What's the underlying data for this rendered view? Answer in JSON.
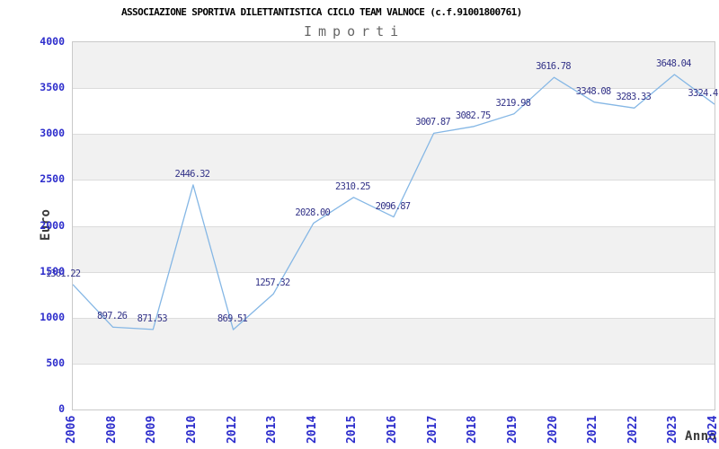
{
  "header": {
    "title": "ASSOCIAZIONE SPORTIVA DILETTANTISTICA CICLO TEAM VALNOCE (c.f.91001800761)",
    "subtitle": "Importi"
  },
  "axes": {
    "y_label": "Euro",
    "x_label": "Anno",
    "y_ticks": [
      "4000",
      "3500",
      "3000",
      "2500",
      "2000",
      "1500",
      "1000",
      "500",
      "0"
    ],
    "x_ticks": [
      "2006",
      "2008",
      "2009",
      "2010",
      "2012",
      "2013",
      "2014",
      "2015",
      "2016",
      "2017",
      "2018",
      "2019",
      "2020",
      "2021",
      "2022",
      "2023",
      "2024"
    ]
  },
  "chart_data": {
    "type": "line",
    "title": "ASSOCIAZIONE SPORTIVA DILETTANTISTICA CICLO TEAM VALNOCE (c.f.91001800761)",
    "subtitle": "Importi",
    "xlabel": "Anno",
    "ylabel": "Euro",
    "categories": [
      "2006",
      "2008",
      "2009",
      "2010",
      "2012",
      "2013",
      "2014",
      "2015",
      "2016",
      "2017",
      "2018",
      "2019",
      "2020",
      "2021",
      "2022",
      "2023",
      "2024"
    ],
    "values": [
      1361.22,
      897.26,
      871.53,
      2446.32,
      869.51,
      1257.32,
      2028.0,
      2310.25,
      2096.87,
      3007.87,
      3082.75,
      3219.98,
      3616.78,
      3348.08,
      3283.33,
      3648.04,
      3324.4
    ],
    "point_labels": [
      "1361.22",
      "897.26",
      "871.53",
      "2446.32",
      "869.51",
      "1257.32",
      "2028.00",
      "2310.25",
      "2096.87",
      "3007.87",
      "3082.75",
      "3219.98",
      "3616.78",
      "3348.08",
      "3283.33",
      "3648.04",
      "3324.4"
    ],
    "ylim": [
      0,
      4000
    ],
    "y_tick_step": 500,
    "grid": "horizontal",
    "band_fill": "alternating",
    "legend": "none",
    "colors": {
      "line": "#85b7e5",
      "point_label": "#333388",
      "tick_label": "#2d2dcc",
      "axis_title": "#3a3a3a",
      "band_gray": "#f1f1f1",
      "gridline": "#dcdcdc",
      "plot_border": "#c9c9c9",
      "title": "#000000",
      "subtitle": "#666666"
    }
  }
}
